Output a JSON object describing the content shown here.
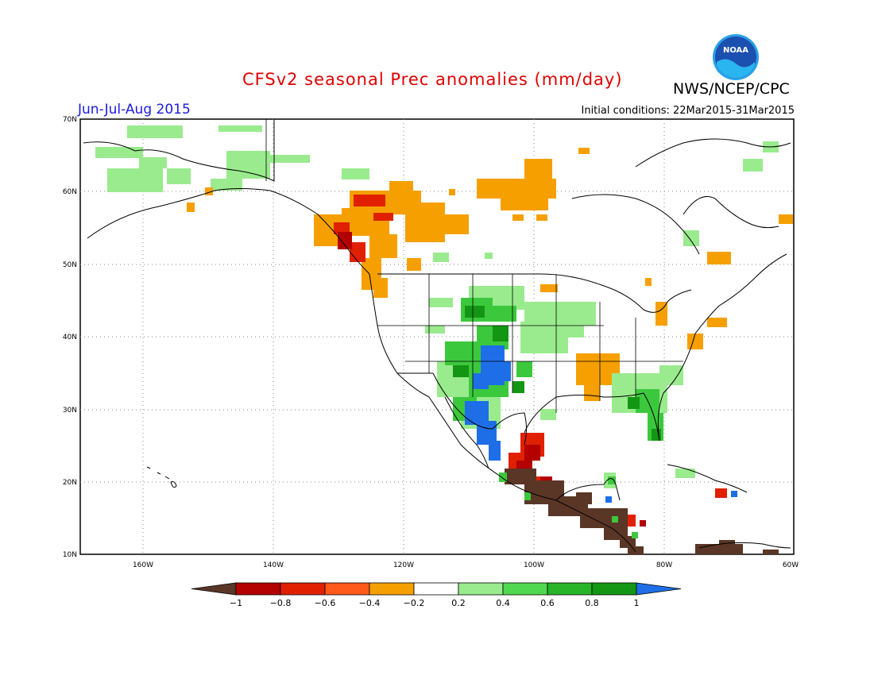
{
  "header": {
    "title": "CFSv2 seasonal Prec anomalies (mm/day)",
    "agency": "NWS/NCEP/CPC",
    "logo_text": "NOAA",
    "period": "Jun-Jul-Aug 2015",
    "initial_conditions": "Initial conditions: 22Mar2015-31Mar2015"
  },
  "map": {
    "lat_labels": [
      "70N",
      "60N",
      "50N",
      "40N",
      "30N",
      "20N",
      "10N"
    ],
    "lon_labels": [
      "160W",
      "140W",
      "120W",
      "100W",
      "80W",
      "60W"
    ]
  },
  "colorbar": {
    "labels": [
      "−1",
      "−0.8",
      "−0.6",
      "−0.4",
      "−0.2",
      "0.2",
      "0.4",
      "0.6",
      "0.8",
      "1"
    ],
    "colors": [
      "#5a3626",
      "#b30000",
      "#e02000",
      "#ff5a1a",
      "#f5a000",
      "#ffffff",
      "#9aeb8e",
      "#50d850",
      "#28b428",
      "#139613",
      "#1e6ee8"
    ]
  },
  "colors": {
    "dry_brown": "#5a3626",
    "dry_red": "#c80000",
    "dry_orange": "#f5a000",
    "wet_light": "#9aeb8e",
    "wet_green": "#3cc83c",
    "wet_blue": "#1e6ee8"
  }
}
